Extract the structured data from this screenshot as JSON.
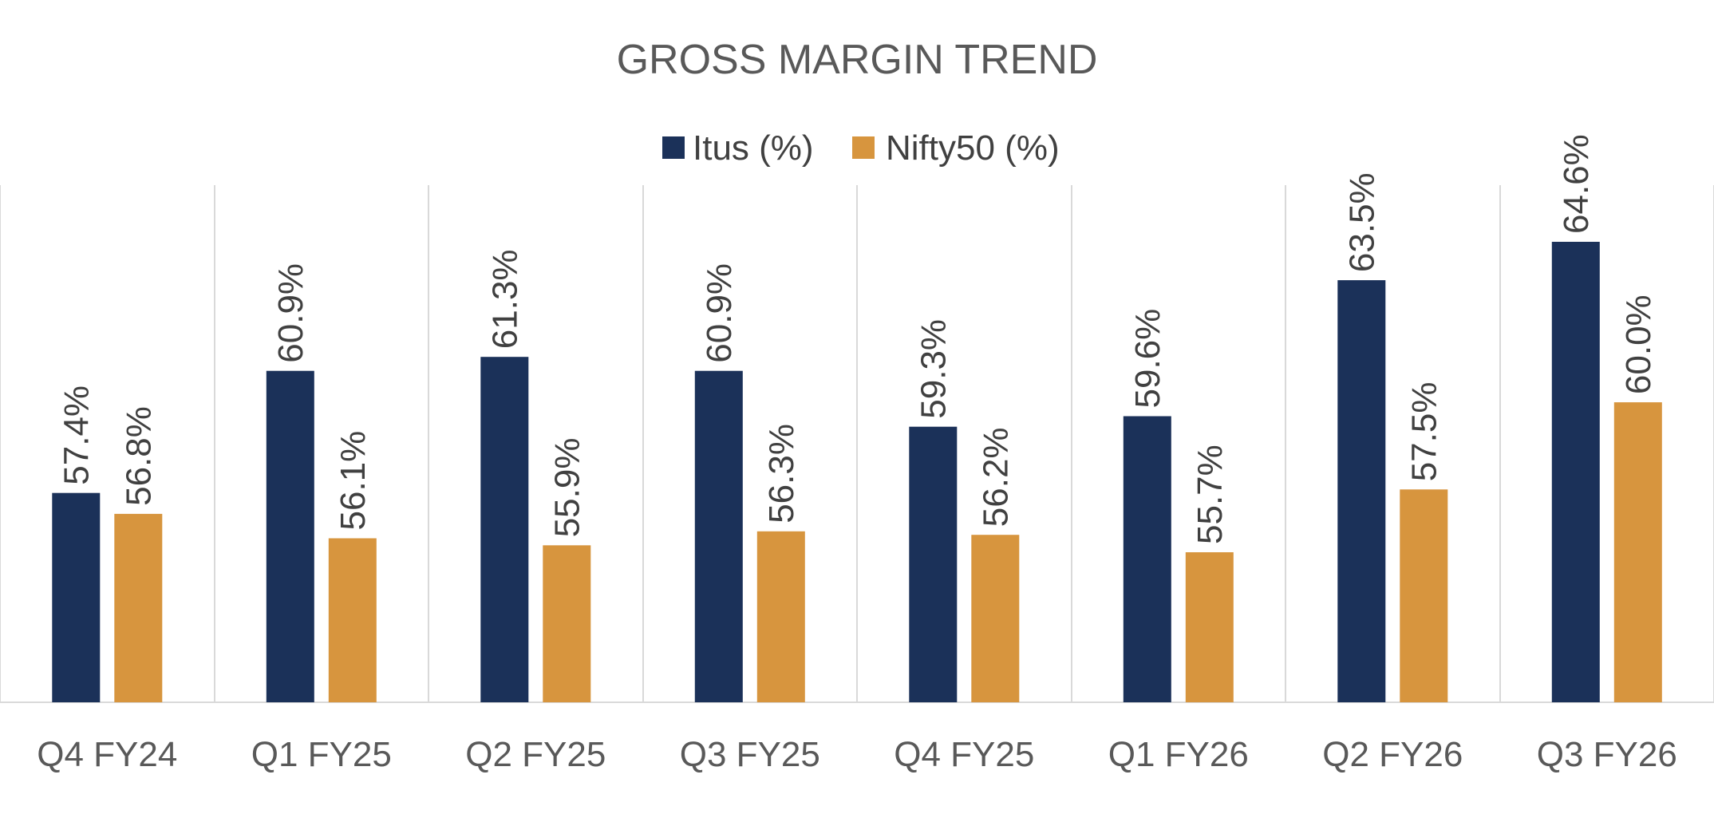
{
  "chart_data": {
    "type": "bar",
    "title": "GROSS MARGIN TREND",
    "categories": [
      "Q4 FY24",
      "Q1 FY25",
      "Q2 FY25",
      "Q3 FY25",
      "Q4 FY25",
      "Q1 FY26",
      "Q2 FY26",
      "Q3 FY26"
    ],
    "series": [
      {
        "name": "Itus (%)",
        "color": "#1b3159",
        "values": [
          57.4,
          60.9,
          61.3,
          60.9,
          59.3,
          59.6,
          63.5,
          64.6
        ],
        "labels": [
          "57.4%",
          "60.9%",
          "61.3%",
          "60.9%",
          "59.3%",
          "59.6%",
          "63.5%",
          "64.6%"
        ]
      },
      {
        "name": "Nifty50 (%)",
        "color": "#d7953e",
        "values": [
          56.8,
          56.1,
          55.9,
          56.3,
          56.2,
          55.7,
          57.5,
          60.0
        ],
        "labels": [
          "56.8%",
          "56.1%",
          "55.9%",
          "56.3%",
          "56.2%",
          "55.7%",
          "57.5%",
          "60.0%"
        ]
      }
    ],
    "xlabel": "",
    "ylabel": "",
    "legend_position": "top-center",
    "grid": "vertical category separators",
    "data_labels": "rotated, above bars"
  }
}
